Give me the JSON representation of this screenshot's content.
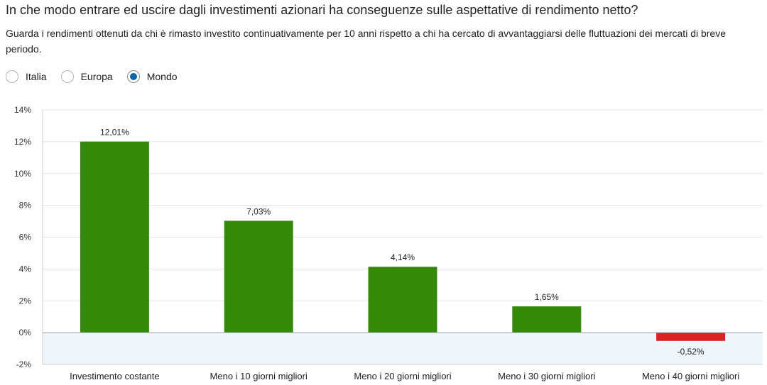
{
  "header": {
    "title": "In che modo entrare ed uscire dagli investimenti azionari ha conseguenze sulle aspettative di rendimento netto?",
    "subtitle": "Guarda i rendimenti ottenuti da chi è rimasto investito continuativamente per 10 anni rispetto a chi ha cercato di avvantaggiarsi delle fluttuazioni dei mercati di breve periodo."
  },
  "region_selector": {
    "options": [
      {
        "label": "Italia",
        "selected": false
      },
      {
        "label": "Europa",
        "selected": false
      },
      {
        "label": "Mondo",
        "selected": true
      }
    ],
    "selected_color": "#0a64a6"
  },
  "chart_data": {
    "type": "bar",
    "categories": [
      "Investimento costante",
      "Meno i 10 giorni migliori",
      "Meno i 20 giorni migliori",
      "Meno i 30 giorni migliori",
      "Meno i 40 giorni migliori"
    ],
    "values": [
      12.01,
      7.03,
      4.14,
      1.65,
      -0.52
    ],
    "data_labels": [
      "12,01%",
      "7,03%",
      "4,14%",
      "1,65%",
      "-0,52%"
    ],
    "ylim": [
      -2,
      14
    ],
    "yticks": [
      -2,
      0,
      2,
      4,
      6,
      8,
      10,
      12,
      14
    ],
    "ytick_labels": [
      "-2%",
      "0%",
      "2%",
      "4%",
      "6%",
      "8%",
      "10%",
      "12%",
      "14%"
    ],
    "grid": true,
    "colors": {
      "positive": "#348a07",
      "negative": "#d92222",
      "negative_area": "#eef5fb",
      "grid": "#e3e3e3",
      "zero_line": "#9aa3ab"
    }
  }
}
